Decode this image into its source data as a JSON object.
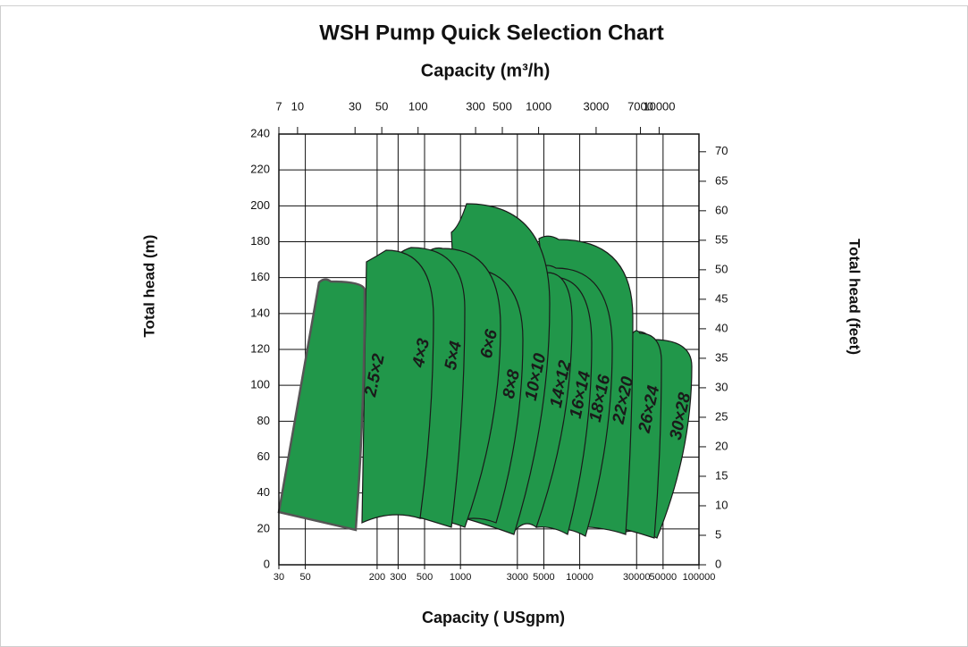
{
  "chart_data": {
    "type": "region",
    "title": "WSH Pump Quick Selection Chart",
    "x2label": "Capacity (m³/h)",
    "xlabel": "Capacity ( USgpm)",
    "ylabel": "Total head (m)",
    "y2label": "Total head (feet)",
    "xscale": "log",
    "xlim": [
      30,
      100000
    ],
    "xticks": [
      30,
      50,
      200,
      300,
      500,
      1000,
      3000,
      5000,
      10000,
      30000,
      50000,
      100000
    ],
    "x2lim": [
      7,
      21400
    ],
    "x2ticks": [
      7,
      10,
      30,
      50,
      100,
      300,
      500,
      1000,
      3000,
      7000,
      10000
    ],
    "ylim": [
      0,
      240
    ],
    "yticks": [
      0,
      20,
      40,
      60,
      80,
      100,
      120,
      140,
      160,
      180,
      200,
      220,
      240
    ],
    "y2lim": [
      0,
      73
    ],
    "y2ticks": [
      0,
      5,
      10,
      15,
      20,
      25,
      30,
      35,
      40,
      45,
      50,
      55,
      60,
      65,
      70
    ],
    "grid": true,
    "color": "#21974a",
    "regions": [
      "2.5×2",
      "4×3",
      "5×4",
      "6×6",
      "8×8",
      "10×10",
      "14×12",
      "16×14",
      "18×16",
      "22×20",
      "26×24",
      "30×28"
    ]
  }
}
